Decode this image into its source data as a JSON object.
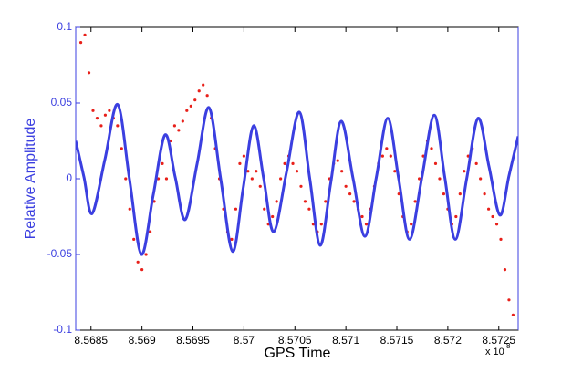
{
  "chart_data": {
    "type": "line",
    "xlabel": "GPS Time",
    "ylabel": "Relative Amplitude",
    "x_multiplier": {
      "base": "x 10",
      "exponent": "8"
    },
    "xlim": [
      8.56835,
      8.57269
    ],
    "ylim": [
      -0.1,
      0.1
    ],
    "xticks": [
      8.5685,
      8.569,
      8.5695,
      8.57,
      8.5705,
      8.571,
      8.5715,
      8.572,
      8.5725
    ],
    "yticks": [
      -0.1,
      -0.05,
      0,
      0.05,
      0.1
    ],
    "grid": false,
    "series": [
      {
        "type": "scatter",
        "color": "#e8201a",
        "x": [
          8.5684,
          8.56844,
          8.56848,
          8.56852,
          8.56856,
          8.5686,
          8.56864,
          8.56868,
          8.56872,
          8.56876,
          8.5688,
          8.56884,
          8.56888,
          8.56892,
          8.56896,
          8.569,
          8.56904,
          8.56908,
          8.56912,
          8.56916,
          8.5692,
          8.56924,
          8.56928,
          8.56932,
          8.56936,
          8.5694,
          8.56944,
          8.56948,
          8.56952,
          8.56956,
          8.5696,
          8.56964,
          8.56968,
          8.56972,
          8.56976,
          8.5698,
          8.56984,
          8.56988,
          8.56992,
          8.56996,
          8.57,
          8.57004,
          8.57008,
          8.57012,
          8.57016,
          8.5702,
          8.57024,
          8.57028,
          8.57032,
          8.57036,
          8.5704,
          8.57044,
          8.57048,
          8.57052,
          8.57056,
          8.5706,
          8.57064,
          8.57068,
          8.57072,
          8.57076,
          8.5708,
          8.57084,
          8.57088,
          8.57092,
          8.57096,
          8.571,
          8.57104,
          8.57108,
          8.57112,
          8.57116,
          8.5712,
          8.57124,
          8.57128,
          8.57132,
          8.57136,
          8.5714,
          8.57144,
          8.57148,
          8.57152,
          8.57156,
          8.5716,
          8.57164,
          8.57168,
          8.57172,
          8.57176,
          8.5718,
          8.57184,
          8.57188,
          8.57192,
          8.57196,
          8.572,
          8.57204,
          8.57208,
          8.57212,
          8.57216,
          8.5722,
          8.57224,
          8.57228,
          8.57232,
          8.57236,
          8.5724,
          8.57244,
          8.57248,
          8.57252,
          8.57256,
          8.5726,
          8.57264
        ],
        "values": [
          0.09,
          0.095,
          0.07,
          0.045,
          0.04,
          0.035,
          0.042,
          0.045,
          0.04,
          0.035,
          0.02,
          0.0,
          -0.02,
          -0.04,
          -0.055,
          -0.06,
          -0.05,
          -0.035,
          -0.015,
          0.0,
          0.01,
          0.0,
          0.025,
          0.035,
          0.032,
          0.038,
          0.045,
          0.048,
          0.052,
          0.058,
          0.062,
          0.055,
          0.04,
          0.02,
          0.0,
          -0.02,
          -0.035,
          -0.04,
          -0.02,
          0.01,
          0.015,
          0.005,
          0.0,
          0.005,
          -0.005,
          -0.02,
          -0.03,
          -0.025,
          -0.015,
          0.0,
          0.01,
          0.015,
          0.01,
          0.005,
          -0.005,
          -0.015,
          -0.02,
          -0.03,
          -0.035,
          -0.03,
          -0.015,
          0.0,
          0.01,
          0.012,
          0.005,
          -0.005,
          -0.01,
          -0.015,
          -0.02,
          -0.025,
          -0.03,
          -0.02,
          -0.005,
          0.01,
          0.015,
          0.02,
          0.015,
          0.005,
          -0.01,
          -0.025,
          -0.035,
          -0.03,
          -0.015,
          0.0,
          0.015,
          0.025,
          0.02,
          0.01,
          0.0,
          -0.01,
          -0.02,
          -0.03,
          -0.025,
          -0.01,
          0.005,
          0.015,
          0.02,
          0.01,
          0.0,
          -0.01,
          -0.02,
          -0.025,
          -0.03,
          -0.04,
          -0.06,
          -0.08,
          -0.09
        ]
      },
      {
        "type": "line",
        "color": "#3b3fe0",
        "x": [
          8.56835,
          8.568431,
          8.568511,
          8.568637,
          8.568762,
          8.568878,
          8.568994,
          8.569111,
          8.569227,
          8.569326,
          8.569424,
          8.569541,
          8.569657,
          8.569773,
          8.569889,
          8.569992,
          8.570095,
          8.570194,
          8.570292,
          8.570418,
          8.570543,
          8.570646,
          8.570748,
          8.570851,
          8.570954,
          8.571071,
          8.571187,
          8.571299,
          8.571411,
          8.571518,
          8.571625,
          8.571746,
          8.571867,
          8.57197,
          8.572073,
          8.572185,
          8.572297,
          8.572404,
          8.572511,
          8.5726,
          8.57269
        ],
        "values": [
          0.025,
          0.001,
          -0.023,
          0.013,
          0.049,
          -0.0005,
          -0.05,
          -0.0105,
          0.029,
          0.001,
          -0.027,
          0.01,
          0.047,
          -0.0005,
          -0.048,
          -0.0065,
          0.035,
          0,
          -0.035,
          0.0045,
          0.044,
          0,
          -0.044,
          -0.003,
          0.038,
          0,
          -0.038,
          0.001,
          0.04,
          0,
          -0.04,
          0.001,
          0.042,
          0.001,
          -0.04,
          0,
          0.04,
          0.008,
          -0.024,
          0.002,
          0.028
        ]
      }
    ]
  }
}
